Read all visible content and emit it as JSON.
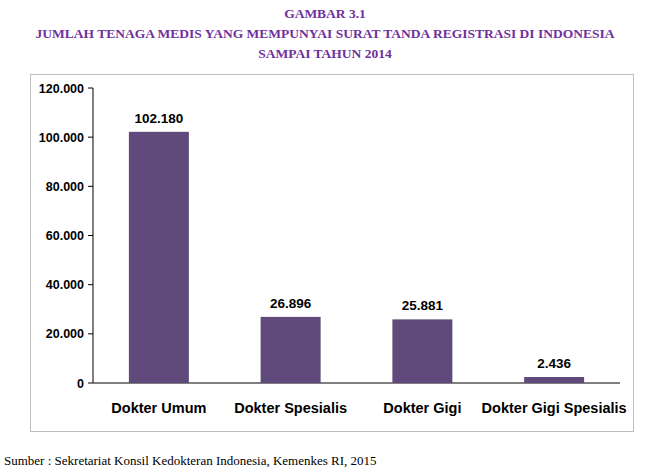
{
  "chart_data": {
    "type": "bar",
    "title": "GAMBAR 3.1",
    "subtitle": "JUMLAH TENAGA MEDIS YANG MEMPUNYAI SURAT TANDA REGISTRASI DI INDONESIA SAMPAI TAHUN 2014",
    "source": "Sumber : Sekretariat Konsil Kedokteran Indonesia, Kemenkes RI, 2015",
    "categories": [
      "Dokter Umum",
      "Dokter Spesialis",
      "Dokter Gigi",
      "Dokter Gigi Spesialis"
    ],
    "values": [
      102180,
      26896,
      25881,
      2436
    ],
    "value_labels": [
      "102.180",
      "26.896",
      "25.881",
      "2.436"
    ],
    "color": "#604a7b",
    "ylim": [
      0,
      120000
    ],
    "yticks": [
      0,
      {
        "value": 20000,
        "label": "20.000"
      },
      {
        "value": 40000,
        "label": "40.000"
      },
      {
        "value": 60000,
        "label": "60.000"
      },
      {
        "value": 80000,
        "label": "80.000"
      },
      {
        "value": 100000,
        "label": "100.000"
      },
      {
        "value": 120000,
        "label": "120.000"
      }
    ],
    "grid": false,
    "data_labels": true
  }
}
